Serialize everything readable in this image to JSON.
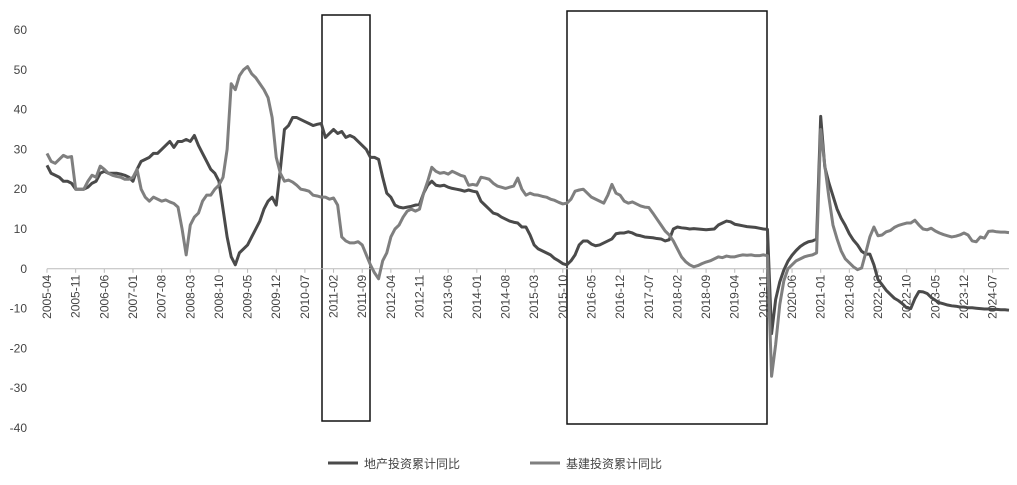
{
  "chart_data": {
    "type": "line",
    "categories": [
      "2005-04",
      null,
      null,
      null,
      null,
      null,
      null,
      "2005-11",
      null,
      null,
      null,
      null,
      null,
      null,
      "2006-06",
      null,
      null,
      null,
      null,
      null,
      null,
      "2007-01",
      null,
      null,
      null,
      null,
      null,
      null,
      "2007-08",
      null,
      null,
      null,
      null,
      null,
      null,
      "2008-03",
      null,
      null,
      null,
      null,
      null,
      null,
      "2008-10",
      null,
      null,
      null,
      null,
      null,
      null,
      "2009-05",
      null,
      null,
      null,
      null,
      null,
      null,
      "2009-12",
      null,
      null,
      null,
      null,
      null,
      null,
      "2010-07",
      null,
      null,
      null,
      null,
      null,
      null,
      "2011-02",
      null,
      null,
      null,
      null,
      null,
      null,
      "2011-09",
      null,
      null,
      null,
      null,
      null,
      null,
      "2012-04",
      null,
      null,
      null,
      null,
      null,
      null,
      "2012-11",
      null,
      null,
      null,
      null,
      null,
      null,
      "2013-06",
      null,
      null,
      null,
      null,
      null,
      null,
      "2014-01",
      null,
      null,
      null,
      null,
      null,
      null,
      "2014-08",
      null,
      null,
      null,
      null,
      null,
      null,
      "2015-03",
      null,
      null,
      null,
      null,
      null,
      null,
      "2015-10",
      null,
      null,
      null,
      null,
      null,
      null,
      "2016-05",
      null,
      null,
      null,
      null,
      null,
      null,
      "2016-12",
      null,
      null,
      null,
      null,
      null,
      null,
      "2017-07",
      null,
      null,
      null,
      null,
      null,
      null,
      "2018-02",
      null,
      null,
      null,
      null,
      null,
      null,
      "2018-09",
      null,
      null,
      null,
      null,
      null,
      null,
      "2019-04",
      null,
      null,
      null,
      null,
      null,
      null,
      "2019-11",
      null,
      null,
      null,
      null,
      null,
      null,
      "2020-06",
      null,
      null,
      null,
      null,
      null,
      null,
      "2021-01",
      null,
      null,
      null,
      null,
      null,
      null,
      "2021-08",
      null,
      null,
      null,
      null,
      null,
      null,
      "2022-03",
      null,
      null,
      null,
      null,
      null,
      null,
      "2022-10",
      null,
      null,
      null,
      null,
      null,
      null,
      "2023-05",
      null,
      null,
      null,
      null,
      null,
      null,
      "2023-12",
      null,
      null,
      null,
      null,
      null,
      null,
      "2024-07",
      null,
      null,
      null,
      null
    ],
    "series": [
      {
        "name": "地产投资累计同比",
        "color": "#4a4a4a",
        "values": [
          26,
          24,
          23.5,
          23,
          22,
          22,
          21.5,
          20,
          20,
          20,
          20.5,
          21.5,
          22,
          24,
          24.5,
          24,
          24,
          24,
          23.8,
          23.5,
          23,
          22,
          25,
          27,
          27.5,
          28,
          29,
          29,
          30,
          31,
          32,
          30.5,
          32,
          32,
          32.5,
          32,
          33.5,
          31,
          29,
          27,
          25,
          24,
          22,
          15,
          8,
          3,
          1,
          4,
          5,
          6,
          8,
          10,
          12,
          15,
          17,
          18,
          16,
          25,
          35,
          36,
          38,
          38,
          37.5,
          37,
          36.5,
          36,
          36.3,
          36.5,
          33,
          34,
          35,
          34,
          34.5,
          33,
          33.5,
          33,
          32,
          31,
          30,
          28,
          28,
          27.5,
          23,
          19,
          18,
          16,
          15.5,
          15.3,
          15.5,
          15.7,
          16,
          16.2,
          19,
          21,
          22,
          21,
          20.8,
          21,
          20.5,
          20.2,
          20,
          19.8,
          19.5,
          19.8,
          19.5,
          19.3,
          17,
          16,
          15,
          14,
          13.7,
          13,
          12.5,
          12,
          11.7,
          11.5,
          10.5,
          10.5,
          8.5,
          6,
          5,
          4.5,
          4,
          3.5,
          2.6,
          2,
          1.3,
          1,
          2,
          3.5,
          6,
          7,
          7,
          6.2,
          5.8,
          6,
          6.5,
          7,
          7.5,
          8.8,
          9,
          9,
          9.3,
          9,
          8.5,
          8.3,
          8,
          7.9,
          7.8,
          7.6,
          7.5,
          7,
          7.3,
          10,
          10.5,
          10.3,
          10.2,
          10,
          10.1,
          10,
          9.9,
          9.8,
          9.9,
          10,
          11,
          11.5,
          12,
          11.8,
          11.2,
          11,
          10.8,
          10.6,
          10.5,
          10.4,
          10.2,
          10,
          9.9,
          -16.3,
          -7.7,
          -3.3,
          -0.3,
          1.9,
          3.4,
          4.6,
          5.6,
          6.3,
          6.8,
          7,
          7.5,
          38.3,
          25.6,
          21.6,
          18.3,
          15,
          12.7,
          10.9,
          8.8,
          7.2,
          6,
          4.4,
          3.7,
          3.7,
          1,
          -2.7,
          -4,
          -5.4,
          -6.4,
          -7.4,
          -8,
          -8.8,
          -9.8,
          -10,
          -7.5,
          -5.7,
          -5.8,
          -6.2,
          -7.2,
          -7.9,
          -8.5,
          -8.8,
          -9.1,
          -9.3,
          -9.4,
          -9.6,
          -9.6,
          -9.8,
          -9.8,
          -9.9,
          -10,
          -10.1,
          -10.1,
          -10.2,
          -10.2,
          -10.3,
          -10.3,
          -10.4
        ]
      },
      {
        "name": "基建投资累计同比",
        "color": "#7f7f7f",
        "values": [
          29,
          27,
          26.5,
          27.5,
          28.5,
          28,
          28.2,
          20,
          20,
          20,
          22,
          23.5,
          23,
          25.8,
          25,
          24,
          23.5,
          23.2,
          23,
          22.5,
          22.5,
          23,
          25,
          20,
          18,
          17,
          18,
          17.5,
          17,
          17.3,
          16.8,
          16.4,
          15.5,
          10,
          3.5,
          11,
          13,
          14,
          17,
          18.5,
          18.5,
          20,
          21,
          23,
          30,
          46.5,
          45,
          48.5,
          50,
          50.8,
          49,
          48,
          46.5,
          45,
          43,
          38,
          28,
          24,
          22,
          22.3,
          21.8,
          21,
          20,
          19.8,
          19.5,
          18.5,
          18.3,
          18,
          18,
          17.5,
          17.8,
          16,
          8,
          7,
          6.5,
          6.5,
          6.8,
          6,
          3.5,
          1,
          -1,
          -2.5,
          2,
          4,
          8,
          10,
          11,
          13,
          14.5,
          15,
          14.5,
          15,
          19,
          22,
          25.5,
          24.5,
          24,
          24.2,
          23.8,
          24.5,
          24,
          23.5,
          23.2,
          21,
          21.2,
          21,
          23,
          22.8,
          22.5,
          21.5,
          20.8,
          20.5,
          20.2,
          20.5,
          20.8,
          22.8,
          20,
          18.5,
          19,
          18.6,
          18.5,
          18.2,
          18,
          17.5,
          17.2,
          16.7,
          16.3,
          16.5,
          17.5,
          19.5,
          19.8,
          20,
          19,
          18,
          17.5,
          17,
          16.5,
          18.5,
          21.2,
          19,
          18.5,
          17,
          16.5,
          16.8,
          16.3,
          15.8,
          15.5,
          15.4,
          14,
          12.5,
          11,
          9.5,
          8.5,
          7,
          5,
          3,
          1.8,
          1,
          0.5,
          0.8,
          1.3,
          1.7,
          2,
          2.5,
          3,
          2.8,
          3.2,
          3,
          3,
          3.3,
          3.5,
          3.4,
          3.5,
          3.3,
          3.3,
          3.5,
          3.3,
          -27,
          -19,
          -9,
          -3,
          0,
          1,
          2,
          2.5,
          3,
          3.3,
          3.5,
          4,
          35,
          26,
          18,
          11,
          7.5,
          4.5,
          2.5,
          1.5,
          0.5,
          -0.2,
          0.2,
          4,
          8,
          10.5,
          8.3,
          8.5,
          9.3,
          9.6,
          10.4,
          10.9,
          11.2,
          11.5,
          11.5,
          12.2,
          11,
          10,
          9.8,
          10.2,
          9.5,
          9,
          8.6,
          8.3,
          8,
          8.2,
          8.5,
          9,
          8.5,
          7,
          6.8,
          8,
          7.7,
          9.4,
          9.5,
          9.3,
          9.2,
          9.2,
          9.1
        ]
      }
    ],
    "ylim": [
      -40,
      60
    ],
    "yticks": [
      -40,
      -30,
      -20,
      -10,
      0,
      10,
      20,
      30,
      40,
      50,
      60
    ],
    "grid": false,
    "legend": "bottom"
  }
}
